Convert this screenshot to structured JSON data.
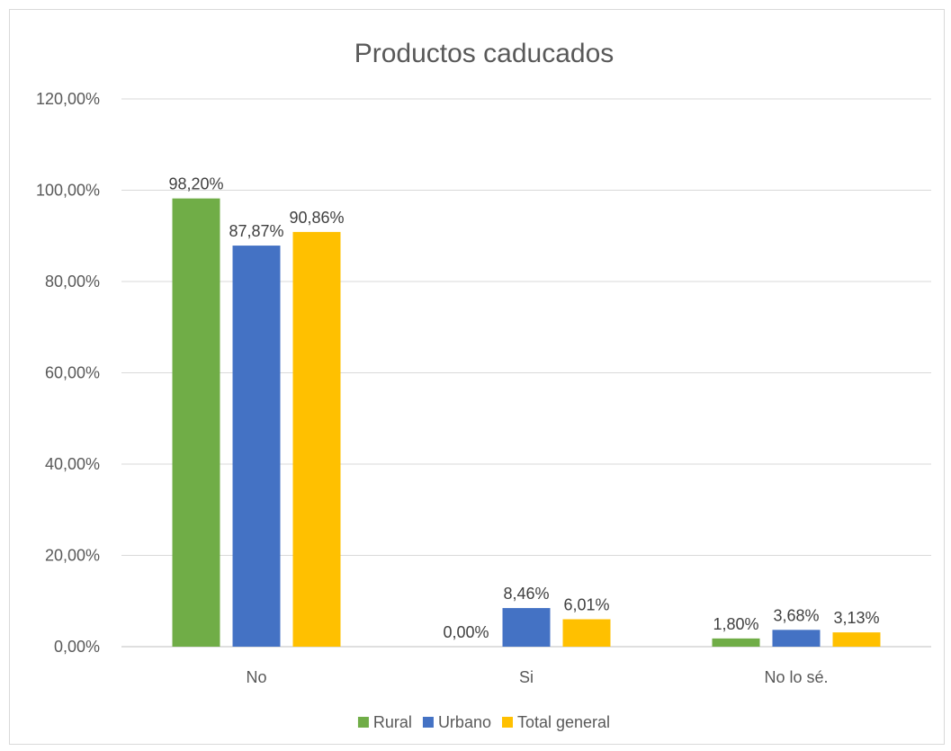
{
  "chart_data": {
    "type": "bar",
    "title": "Productos caducados",
    "categories": [
      "No",
      "Si",
      "No lo sé."
    ],
    "series": [
      {
        "name": "Rural",
        "values": [
          98.2,
          0.0,
          1.8
        ],
        "labels": [
          "98,20%",
          "0,00%",
          "1,80%"
        ],
        "color": "#70ad47"
      },
      {
        "name": "Urbano",
        "values": [
          87.87,
          8.46,
          3.68
        ],
        "labels": [
          "87,87%",
          "8,46%",
          "3,68%"
        ],
        "color": "#4472c4"
      },
      {
        "name": "Total general",
        "values": [
          90.86,
          6.01,
          3.13
        ],
        "labels": [
          "90,86%",
          "6,01%",
          "3,13%"
        ],
        "color": "#ffc000"
      }
    ],
    "ylim": [
      0,
      120
    ],
    "yticks": [
      0,
      20,
      40,
      60,
      80,
      100,
      120
    ],
    "ytick_labels": [
      "0,00%",
      "20,00%",
      "40,00%",
      "60,00%",
      "80,00%",
      "100,00%",
      "120,00%"
    ],
    "xlabel": "",
    "ylabel": "",
    "grid": true,
    "legend_position": "bottom"
  }
}
